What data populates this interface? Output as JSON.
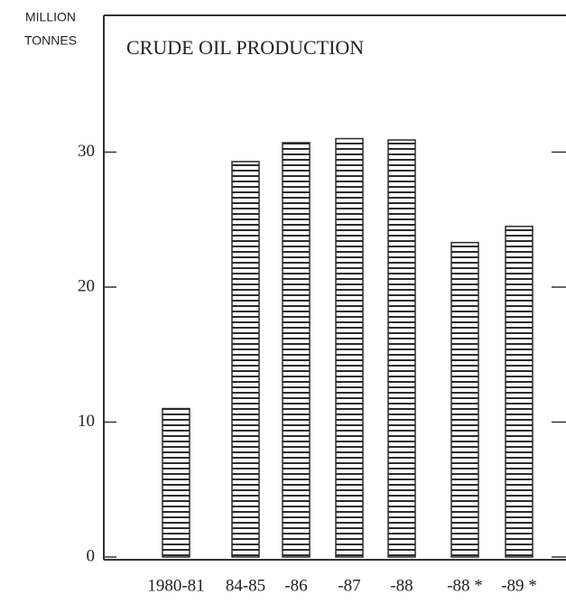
{
  "chart_data": {
    "type": "bar",
    "title": "CRUDE OIL PRODUCTION",
    "y_label": [
      "MILLION",
      "TONNES"
    ],
    "categories": [
      "1980-81",
      "84-85",
      "-86",
      "-87",
      "-88",
      "-88 *",
      "-89 *"
    ],
    "values": [
      11,
      29.3,
      30.7,
      31,
      30.9,
      23.3,
      24.5
    ],
    "color": "#2a2a2a",
    "ylim": [
      0,
      40
    ],
    "yticks": [
      0,
      10,
      20,
      30
    ],
    "grid": false
  }
}
